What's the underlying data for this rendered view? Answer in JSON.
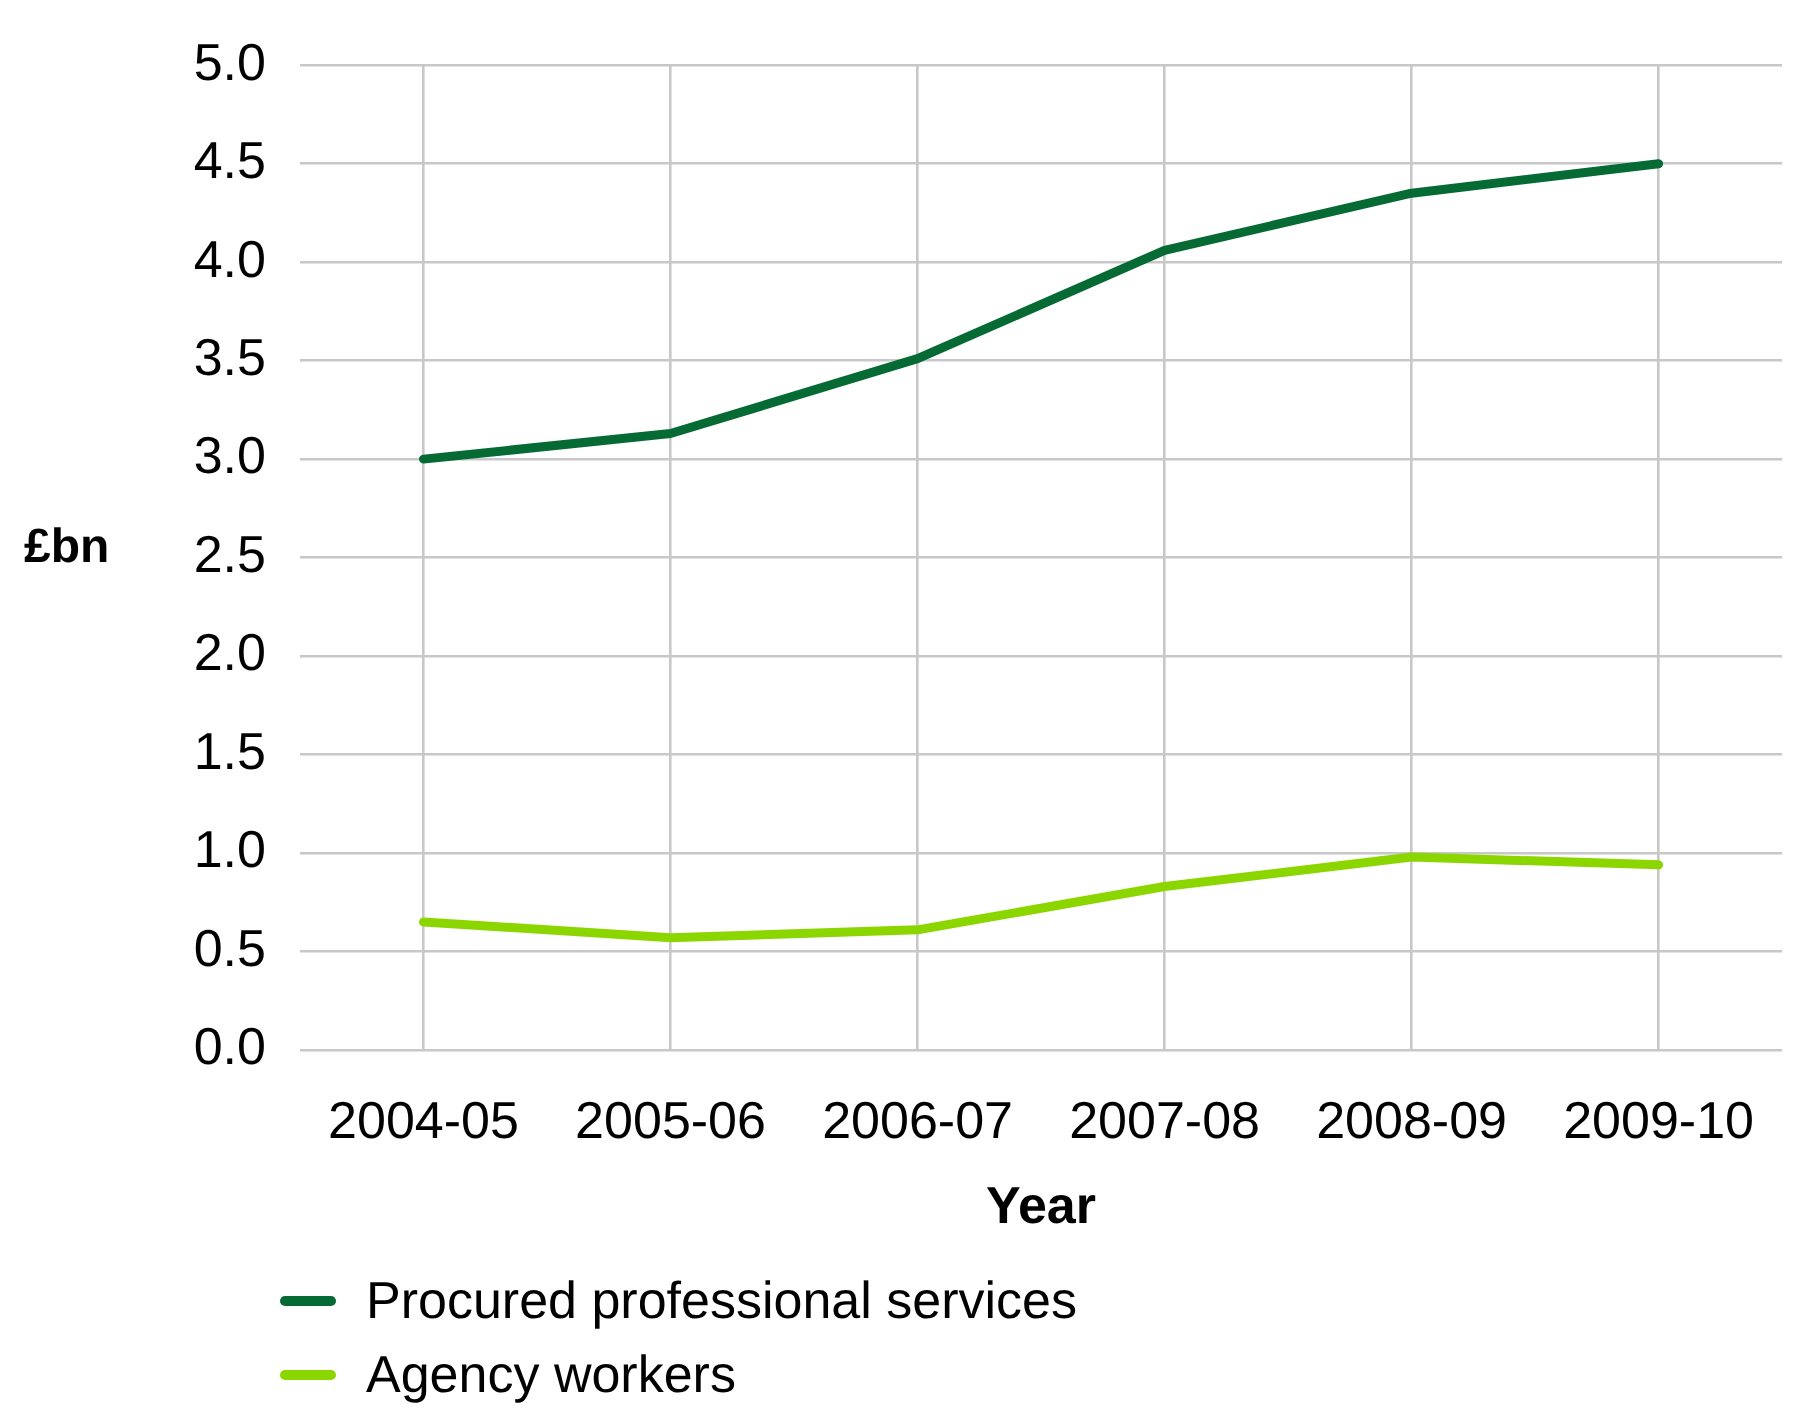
{
  "chart_data": {
    "type": "line",
    "xlabel": "Year",
    "ylabel": "£bn",
    "categories": [
      "2004-05",
      "2005-06",
      "2006-07",
      "2007-08",
      "2008-09",
      "2009-10"
    ],
    "series": [
      {
        "name": "Procured professional services",
        "color": "#066a34",
        "values": [
          3.0,
          3.13,
          3.51,
          4.06,
          4.35,
          4.5
        ]
      },
      {
        "name": "Agency workers",
        "color": "#8cd600",
        "values": [
          0.65,
          0.57,
          0.61,
          0.83,
          0.98,
          0.94
        ]
      }
    ],
    "ylim": [
      0,
      5
    ],
    "yticks": [
      {
        "value": 0,
        "label": "0.0"
      },
      0.5,
      {
        "value": 1,
        "label": "1.0"
      },
      1.5,
      {
        "value": 2,
        "label": "2.0"
      },
      2.5,
      {
        "value": 3,
        "label": "3.0"
      },
      3.5,
      {
        "value": 4,
        "label": "4.0"
      },
      4.5,
      {
        "value": 5,
        "label": "5.0"
      }
    ],
    "grid": true,
    "legend": "bottom",
    "marker": "none"
  }
}
